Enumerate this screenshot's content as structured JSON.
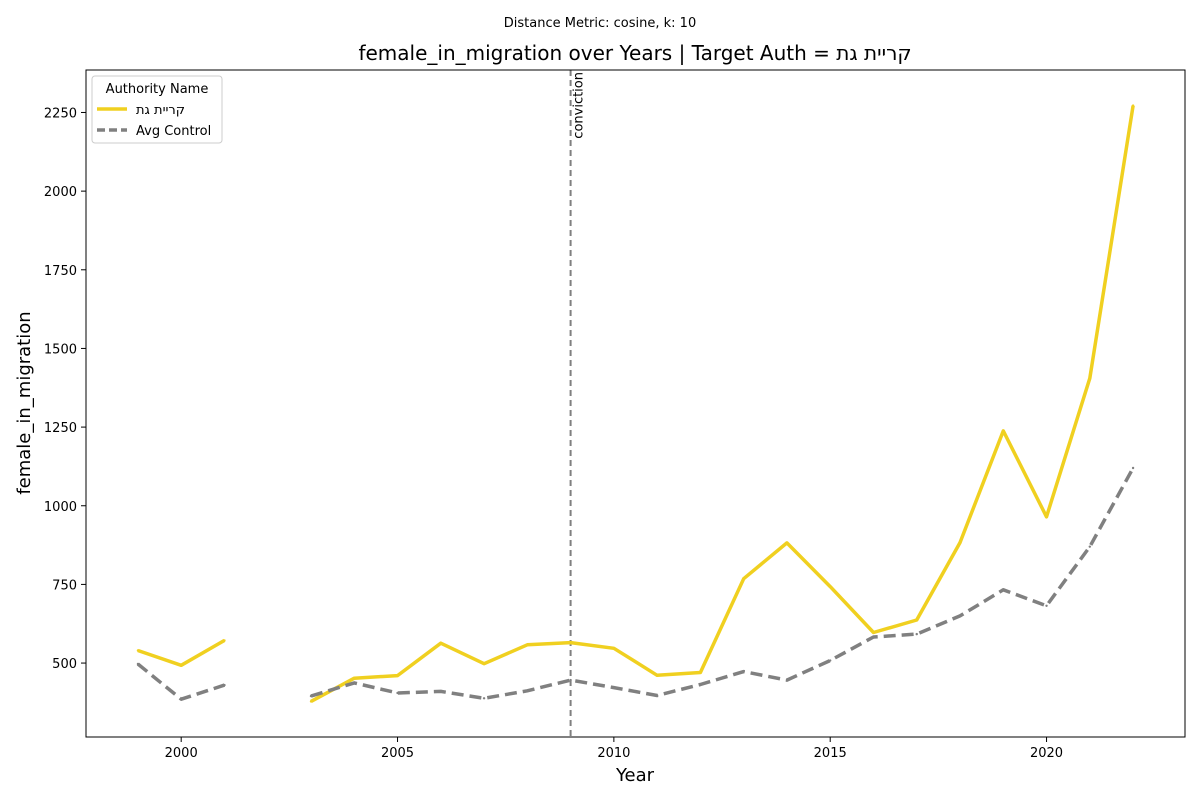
{
  "suptitle": "Distance Metric: cosine, k: 10",
  "chart_data": {
    "type": "line",
    "title": "female_in_migration over Years | Target Auth = קריית גת",
    "xlabel": "Year",
    "ylabel": "female_in_migration",
    "xlim": [
      1997.8,
      2023.2
    ],
    "ylim": [
      265,
      2385
    ],
    "x_ticks": [
      2000,
      2005,
      2010,
      2015,
      2020
    ],
    "y_ticks": [
      500,
      750,
      1000,
      1250,
      1500,
      1750,
      2000,
      2250
    ],
    "grid": false,
    "legend": {
      "title": "Authority Name",
      "placement": "top-left"
    },
    "x": [
      1999,
      2000,
      2001,
      2002,
      2003,
      2004,
      2005,
      2006,
      2007,
      2008,
      2009,
      2010,
      2011,
      2012,
      2013,
      2014,
      2015,
      2016,
      2017,
      2018,
      2019,
      2020,
      2021,
      2022
    ],
    "series": [
      {
        "name": "קריית גת",
        "color": "#f0d020",
        "style": "solid",
        "values": [
          540,
          493,
          572,
          null,
          378,
          452,
          460,
          563,
          498,
          558,
          565,
          547,
          461,
          470,
          768,
          882,
          743,
          597,
          637,
          883,
          1238,
          965,
          1405,
          2272
        ]
      },
      {
        "name": "Avg Control",
        "color": "#808080",
        "style": "dashed",
        "values": [
          497,
          385,
          430,
          null,
          395,
          437,
          405,
          410,
          388,
          412,
          446,
          422,
          397,
          432,
          473,
          446,
          508,
          583,
          592,
          650,
          733,
          682,
          870,
          1120
        ]
      }
    ],
    "annotations": [
      {
        "type": "vline",
        "x": 2009,
        "label": "conviction",
        "color": "#808080",
        "style": "dashed"
      }
    ]
  }
}
